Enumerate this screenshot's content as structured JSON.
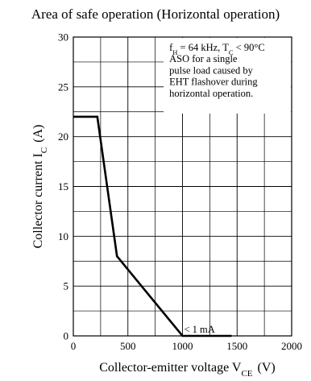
{
  "chart_data": {
    "type": "line",
    "title": "Area of safe operation (Horizontal operation)",
    "xlabel": {
      "main": "Collector-emitter voltage  V",
      "sub": "CE",
      "unit": "(V)"
    },
    "ylabel": {
      "main": "Collector current  I",
      "sub": "C",
      "unit": "(A)"
    },
    "xlim": [
      0,
      2000
    ],
    "ylim": [
      0,
      30
    ],
    "x_ticks": [
      0,
      500,
      1000,
      1500,
      2000
    ],
    "y_ticks": [
      0,
      5,
      10,
      15,
      20,
      25,
      30
    ],
    "x_tick_labels": [
      "0",
      "500",
      "1000",
      "1500",
      "2000"
    ],
    "y_tick_labels": [
      "0",
      "5",
      "10",
      "15",
      "20",
      "25",
      "30"
    ],
    "grid": true,
    "series": [
      {
        "points": [
          [
            0,
            22
          ],
          [
            220,
            22
          ],
          [
            400,
            8
          ],
          [
            1000,
            0
          ],
          [
            1450,
            0
          ]
        ]
      }
    ],
    "annotations": {
      "condition_lines": [
        {
          "pre": "f",
          "sub": "H",
          "mid": " = 64 kHz, T",
          "sub2": "C",
          "post": " < 90°C"
        },
        {
          "text": "ASO for a single"
        },
        {
          "text": "pulse load caused by"
        },
        {
          "text": "EHT flashover during"
        },
        {
          "text": "horizontal operation."
        }
      ],
      "leakage_label": "< 1 mA"
    }
  }
}
